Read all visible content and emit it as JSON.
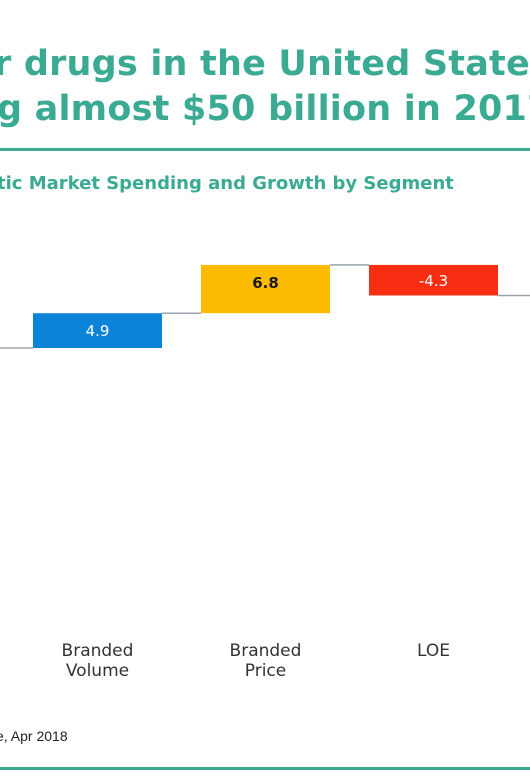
{
  "headline": {
    "line1": "r drugs in the United States",
    "line2": "g almost $50 billion in 2017"
  },
  "chart_subtitle": "tic Market Spending and Growth by Segment",
  "source_note": "e, Apr 2018",
  "colors": {
    "teal": "#3aab92",
    "blue": "#0b83d9",
    "yellow": "#fdbc02",
    "red": "#f72e12",
    "connector": "#9aa3ab"
  },
  "chart_data": {
    "type": "waterfall",
    "categories": [
      "Branded Volume",
      "Branded Price",
      "LOE"
    ],
    "category_label_lines": [
      [
        "Branded",
        "Volume"
      ],
      [
        "Branded",
        "Price"
      ],
      [
        "LOE"
      ]
    ],
    "values": [
      4.9,
      6.8,
      -4.3
    ],
    "value_labels": [
      "4.9",
      "6.8",
      "-4.3"
    ],
    "bar_colors": [
      "#0b83d9",
      "#fdbc02",
      "#f72e12"
    ],
    "value_label_colors": [
      "#ffffff",
      "#1a1a1a",
      "#ffffff"
    ]
  }
}
